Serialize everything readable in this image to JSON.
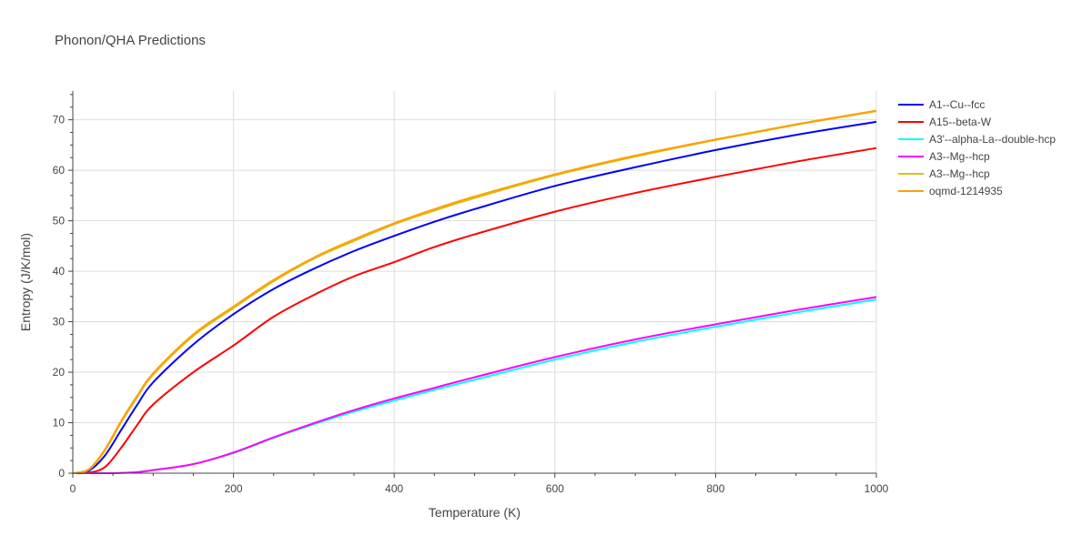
{
  "chart_data": {
    "type": "line",
    "title": "Phonon/QHA Predictions",
    "xlabel": "Temperature (K)",
    "ylabel": "Entropy (J/K/mol)",
    "xlim": [
      0,
      1000
    ],
    "ylim": [
      0,
      75.7
    ],
    "xticks": [
      0,
      200,
      400,
      600,
      800,
      1000
    ],
    "yticks": [
      0,
      10,
      20,
      30,
      40,
      50,
      60,
      70
    ],
    "grid": true,
    "legend_position": "right",
    "x": [
      0,
      20,
      40,
      60,
      80,
      100,
      150,
      200,
      250,
      300,
      350,
      400,
      450,
      500,
      600,
      700,
      800,
      900,
      1000
    ],
    "series": [
      {
        "name": "A1--Cu--fcc",
        "color": "#0000ff",
        "values": [
          0,
          0.5,
          3.5,
          8.5,
          13.5,
          18.0,
          25.5,
          31.5,
          36.5,
          40.5,
          44.0,
          47.0,
          49.8,
          52.3,
          56.9,
          60.6,
          64.0,
          67.0,
          69.6
        ]
      },
      {
        "name": "A15--beta-W",
        "color": "#ff0000",
        "values": [
          0,
          0.1,
          1.2,
          5.0,
          9.5,
          13.6,
          20.0,
          25.3,
          31.0,
          35.3,
          39.0,
          41.8,
          44.8,
          47.3,
          51.8,
          55.5,
          58.7,
          61.7,
          64.4
        ]
      },
      {
        "name": "A3'--alpha-La--double-hcp",
        "color": "#00ffff",
        "values": [
          0,
          0,
          0,
          0.05,
          0.2,
          0.6,
          1.8,
          4.0,
          7.0,
          9.7,
          12.2,
          14.4,
          16.5,
          18.5,
          22.5,
          26.0,
          29.0,
          31.8,
          34.4
        ]
      },
      {
        "name": "A3--Mg--hcp",
        "color": "#ff00ff",
        "values": [
          0,
          0,
          0,
          0.05,
          0.2,
          0.6,
          1.8,
          4.1,
          7.1,
          9.9,
          12.5,
          14.8,
          16.9,
          19.0,
          23.0,
          26.5,
          29.5,
          32.3,
          34.9
        ]
      },
      {
        "name": "A3--Mg--hcp",
        "color": "#d4c21e",
        "values": [
          0,
          0.7,
          4.5,
          10.0,
          15.0,
          19.5,
          27.2,
          32.7,
          38.0,
          42.5,
          46.0,
          49.3,
          52.0,
          54.5,
          59.0,
          62.7,
          66.0,
          69.0,
          71.7
        ]
      },
      {
        "name": "oqmd-1214935",
        "color": "#ffa000",
        "values": [
          0,
          0.8,
          4.7,
          10.3,
          15.3,
          19.8,
          27.5,
          33.0,
          38.3,
          42.7,
          46.3,
          49.5,
          52.3,
          54.8,
          59.2,
          62.9,
          66.1,
          69.1,
          71.8
        ]
      }
    ]
  }
}
